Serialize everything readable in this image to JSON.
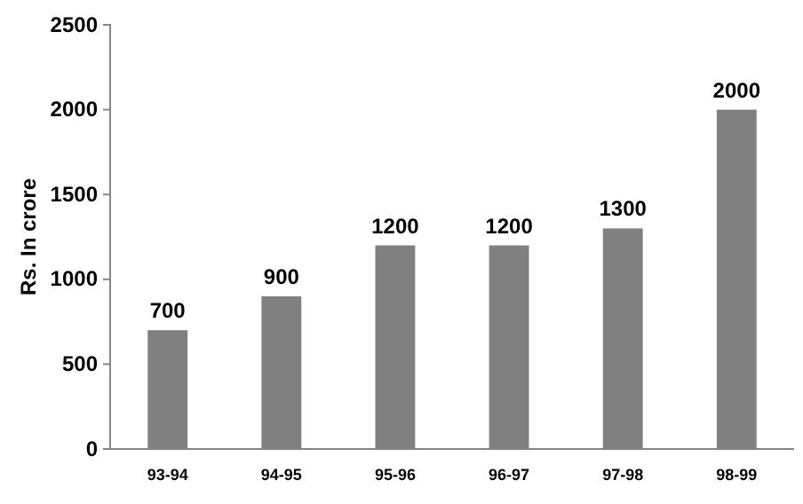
{
  "chart_data": {
    "type": "bar",
    "ylabel": "Rs. In crore",
    "categories": [
      "93-94",
      "94-95",
      "95-96",
      "96-97",
      "97-98",
      "98-99"
    ],
    "values": [
      700,
      900,
      1200,
      1200,
      1300,
      2000
    ],
    "color": "#808080",
    "ylim": [
      0,
      2500
    ],
    "yticks": [
      0,
      500,
      1000,
      1500,
      2000,
      2500
    ],
    "data_labels": true,
    "grid": false
  }
}
